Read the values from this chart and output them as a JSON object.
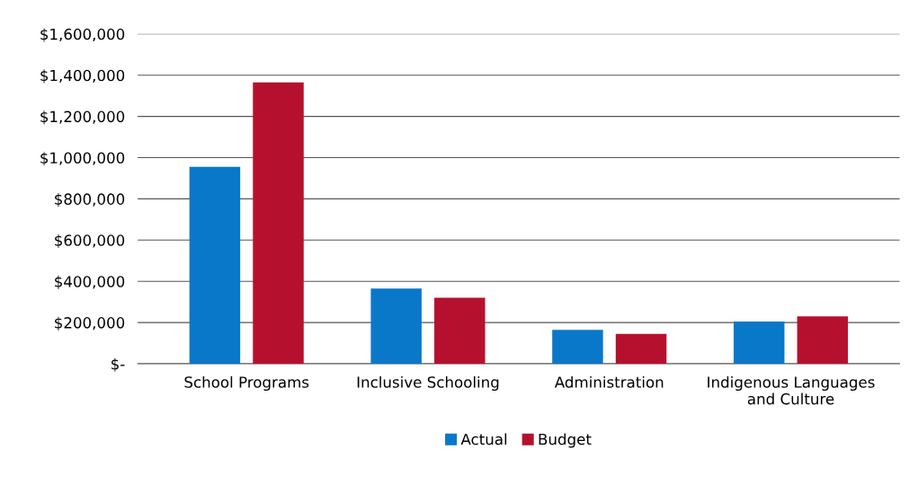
{
  "chart_data": {
    "type": "bar",
    "categories": [
      "School Programs",
      "Inclusive Schooling",
      "Administration",
      "Indigenous Languages\nand Culture"
    ],
    "series": [
      {
        "name": "Actual",
        "color": "#0a78c8",
        "values": [
          955000,
          365000,
          165000,
          205000
        ]
      },
      {
        "name": "Budget",
        "color": "#b5112e",
        "values": [
          1365000,
          320000,
          145000,
          230000
        ]
      }
    ],
    "ylim": [
      0,
      1600000
    ],
    "yticks": [
      {
        "value": 0,
        "label": "$-"
      },
      {
        "value": 200000,
        "label": "$200,000"
      },
      {
        "value": 400000,
        "label": "$400,000"
      },
      {
        "value": 600000,
        "label": "$600,000"
      },
      {
        "value": 800000,
        "label": "$800,000"
      },
      {
        "value": 1000000,
        "label": "$1,000,000"
      },
      {
        "value": 1200000,
        "label": "$1,200,000"
      },
      {
        "value": 1400000,
        "label": "$1,400,000"
      },
      {
        "value": 1600000,
        "label": "$1,600,000"
      }
    ],
    "grid": "y",
    "legend": "bottom"
  }
}
